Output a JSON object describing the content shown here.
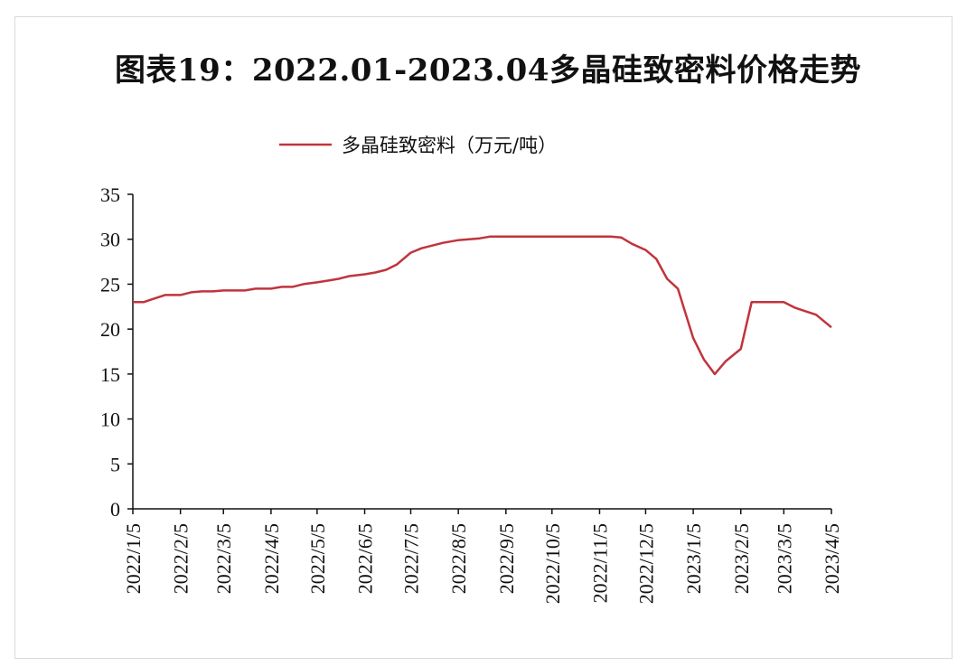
{
  "chart_data": {
    "type": "line",
    "title": "图表19：2022.01-2023.04多晶硅致密料价格走势",
    "xlabel": "",
    "ylabel": "",
    "ylim": [
      0,
      35
    ],
    "y_ticks": [
      0,
      5,
      10,
      15,
      20,
      25,
      30,
      35
    ],
    "x_ticks": [
      "2022/1/5",
      "2022/2/5",
      "2022/3/5",
      "2022/4/5",
      "2022/5/5",
      "2022/6/5",
      "2022/7/5",
      "2022/8/5",
      "2022/9/5",
      "2022/10/5",
      "2022/11/5",
      "2022/12/5",
      "2023/1/5",
      "2023/2/5",
      "2023/3/5",
      "2023/4/5"
    ],
    "legend_position": "top-center",
    "grid": false,
    "series": [
      {
        "name": "多晶硅致密料（万元/吨）",
        "color": "#c0343d",
        "x": [
          "2022/1/5",
          "2022/1/12",
          "2022/1/19",
          "2022/1/26",
          "2022/2/5",
          "2022/2/12",
          "2022/2/19",
          "2022/2/26",
          "2022/3/5",
          "2022/3/12",
          "2022/3/19",
          "2022/3/26",
          "2022/4/5",
          "2022/4/12",
          "2022/4/19",
          "2022/4/26",
          "2022/5/5",
          "2022/5/12",
          "2022/5/19",
          "2022/5/26",
          "2022/6/5",
          "2022/6/12",
          "2022/6/19",
          "2022/6/26",
          "2022/7/5",
          "2022/7/12",
          "2022/7/19",
          "2022/7/26",
          "2022/8/5",
          "2022/8/12",
          "2022/8/19",
          "2022/8/26",
          "2022/9/5",
          "2022/9/12",
          "2022/9/19",
          "2022/9/26",
          "2022/10/5",
          "2022/10/12",
          "2022/10/19",
          "2022/10/26",
          "2022/11/5",
          "2022/11/12",
          "2022/11/19",
          "2022/11/26",
          "2022/12/5",
          "2022/12/12",
          "2022/12/19",
          "2022/12/26",
          "2023/1/5",
          "2023/1/12",
          "2023/1/19",
          "2023/1/26",
          "2023/2/5",
          "2023/2/12",
          "2023/2/19",
          "2023/2/26",
          "2023/3/5",
          "2023/3/12",
          "2023/3/19",
          "2023/3/26",
          "2023/4/5"
        ],
        "values": [
          23.0,
          23.0,
          23.4,
          23.8,
          23.8,
          24.1,
          24.2,
          24.2,
          24.3,
          24.3,
          24.3,
          24.5,
          24.5,
          24.7,
          24.7,
          25.0,
          25.2,
          25.4,
          25.6,
          25.9,
          26.1,
          26.3,
          26.6,
          27.2,
          28.5,
          29.0,
          29.3,
          29.6,
          29.9,
          30.0,
          30.1,
          30.3,
          30.3,
          30.3,
          30.3,
          30.3,
          30.3,
          30.3,
          30.3,
          30.3,
          30.3,
          30.3,
          30.2,
          29.5,
          28.8,
          27.8,
          25.6,
          24.5,
          19.0,
          16.6,
          15.0,
          16.4,
          17.8,
          23.0,
          23.0,
          23.0,
          23.0,
          22.4,
          22.0,
          21.6,
          20.2
        ]
      }
    ]
  }
}
